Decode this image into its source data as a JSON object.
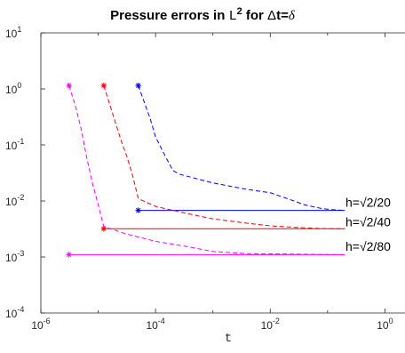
{
  "chart_data": {
    "type": "line",
    "title": {
      "prefix": "Pressure errors in ",
      "norm": "L",
      "norm_exp": "2",
      "middle": " for ",
      "delta_sym": "Δ",
      "t_eq": "t=",
      "delta_var": "δ"
    },
    "xlabel": "t",
    "ylabel": "",
    "x_scale": "log",
    "y_scale": "log",
    "xlim": [
      1e-06,
      1
    ],
    "ylim": [
      0.0001,
      10
    ],
    "x_ticks": [
      {
        "value": 1e-06,
        "base": "10",
        "exp": "-6"
      },
      {
        "value": 0.0001,
        "base": "10",
        "exp": "-4"
      },
      {
        "value": 0.01,
        "base": "10",
        "exp": "-2"
      },
      {
        "value": 1,
        "base": "10",
        "exp": "0"
      }
    ],
    "y_ticks": [
      {
        "value": 10,
        "base": "10",
        "exp": "1"
      },
      {
        "value": 1,
        "base": "10",
        "exp": "0"
      },
      {
        "value": 0.1,
        "base": "10",
        "exp": "-1"
      },
      {
        "value": 0.01,
        "base": "10",
        "exp": "-2"
      },
      {
        "value": 0.001,
        "base": "10",
        "exp": "-3"
      },
      {
        "value": 0.0001,
        "base": "10",
        "exp": "-4"
      }
    ],
    "grid": false,
    "box": "left-bottom-top",
    "series": [
      {
        "name": "h=√2/20",
        "color": "#0000ff",
        "start_marker": {
          "x": 5e-05,
          "y": 1.15
        },
        "dashed": [
          [
            5e-05,
            1.15
          ],
          [
            8e-05,
            0.3
          ],
          [
            0.0001,
            0.14
          ],
          [
            0.00014,
            0.07
          ],
          [
            0.0002,
            0.035
          ],
          [
            0.00026,
            0.03
          ],
          [
            0.001,
            0.021
          ],
          [
            0.004,
            0.016
          ],
          [
            0.01,
            0.014
          ],
          [
            0.02,
            0.011
          ],
          [
            0.04,
            0.0085
          ],
          [
            0.08,
            0.0073
          ],
          [
            0.12,
            0.007
          ],
          [
            0.2,
            0.0068
          ]
        ],
        "solid_marker": {
          "x": 5e-05,
          "y": 0.0068
        },
        "solid": [
          [
            5e-05,
            0.0068
          ],
          [
            0.2,
            0.0068
          ]
        ]
      },
      {
        "name": "h=√2/40",
        "color": "#ff0000",
        "start_marker": {
          "x": 1.25e-05,
          "y": 1.15
        },
        "dashed": [
          [
            1.25e-05,
            1.15
          ],
          [
            2e-05,
            0.25
          ],
          [
            2.5e-05,
            0.12
          ],
          [
            3.2e-05,
            0.06
          ],
          [
            4e-05,
            0.028
          ],
          [
            5e-05,
            0.011
          ],
          [
            0.0001,
            0.008
          ],
          [
            0.0003,
            0.0062
          ],
          [
            0.001,
            0.0048
          ],
          [
            0.004,
            0.004
          ],
          [
            0.01,
            0.0036
          ],
          [
            0.04,
            0.0033
          ],
          [
            0.1,
            0.0032
          ],
          [
            0.2,
            0.0032
          ]
        ],
        "solid_marker": {
          "x": 1.25e-05,
          "y": 0.0032
        },
        "solid": [
          [
            1.25e-05,
            0.0032
          ],
          [
            0.2,
            0.0032
          ]
        ]
      },
      {
        "name": "h=√2/80",
        "color": "#ff00ff",
        "start_marker": {
          "x": 3.1e-06,
          "y": 1.15
        },
        "dashed": [
          [
            3.1e-06,
            1.15
          ],
          [
            4e-06,
            0.5
          ],
          [
            5e-06,
            0.2
          ],
          [
            6.3e-06,
            0.06
          ],
          [
            8e-06,
            0.02
          ],
          [
            1e-05,
            0.0085
          ],
          [
            1.25e-05,
            0.0035
          ],
          [
            3e-05,
            0.0026
          ],
          [
            0.0001,
            0.0019
          ],
          [
            0.0004,
            0.0015
          ],
          [
            0.001,
            0.00125
          ],
          [
            0.004,
            0.00115
          ],
          [
            0.2,
            0.0011
          ]
        ],
        "solid_marker": {
          "x": 3.1e-06,
          "y": 0.0011
        },
        "solid": [
          [
            3.1e-06,
            0.0011
          ],
          [
            0.2,
            0.0011
          ]
        ]
      }
    ],
    "annotations": [
      {
        "text": "h=√2/20",
        "x": 0.3,
        "y": 0.0095
      },
      {
        "text": "h=√2/40",
        "x": 0.3,
        "y": 0.0042
      },
      {
        "text": "h=√2/80",
        "x": 0.3,
        "y": 0.00155
      }
    ]
  }
}
